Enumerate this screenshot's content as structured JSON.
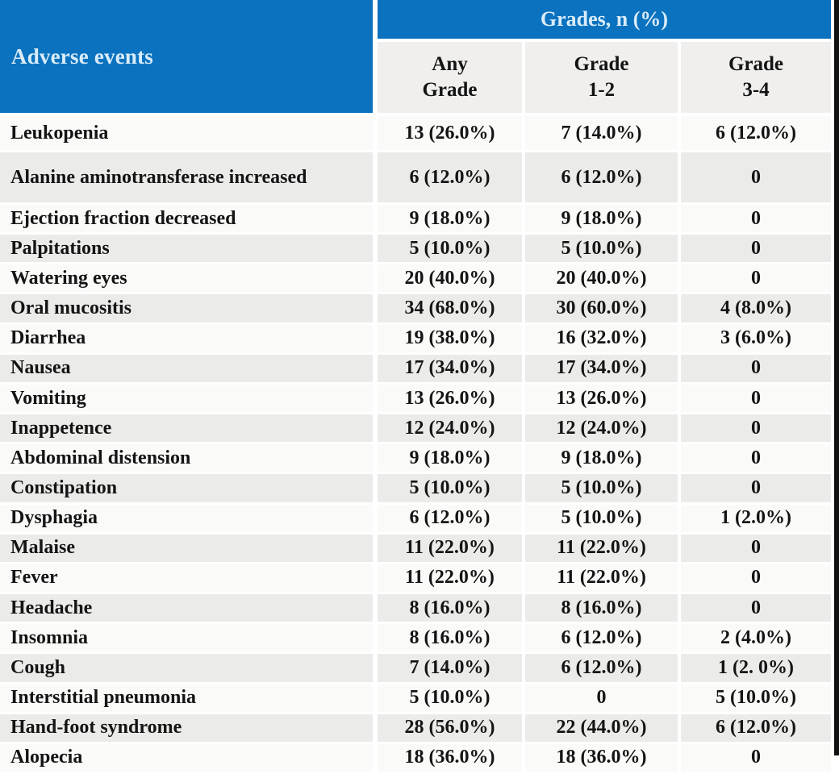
{
  "colors": {
    "header_blue": "#0a72bf",
    "header_text": "#d9ecf9",
    "row_light": "#fafaf8",
    "row_shaded": "#ebebe9",
    "subheader_bg": "#f0efed",
    "body_text": "#141414",
    "edge_black": "#111111"
  },
  "table": {
    "corner_header": "Adverse events",
    "group_header": "Grades, n (%)",
    "columns": [
      {
        "line1": "Any",
        "line2": "Grade"
      },
      {
        "line1": "Grade",
        "line2": "1-2"
      },
      {
        "line1": "Grade",
        "line2": "3-4"
      }
    ],
    "rows": [
      {
        "event": "Leukopenia",
        "values": [
          "13 (26.0%)",
          "7 (14.0%)",
          "6 (12.0%)"
        ]
      },
      {
        "event": "Alanine aminotransferase increased",
        "values": [
          "6 (12.0%)",
          "6 (12.0%)",
          "0"
        ]
      },
      {
        "event": "Ejection fraction decreased",
        "values": [
          "9 (18.0%)",
          "9 (18.0%)",
          "0"
        ]
      },
      {
        "event": "Palpitations",
        "values": [
          "5 (10.0%)",
          "5 (10.0%)",
          "0"
        ]
      },
      {
        "event": "Watering eyes",
        "values": [
          "20 (40.0%)",
          "20 (40.0%)",
          "0"
        ]
      },
      {
        "event": "Oral mucositis",
        "values": [
          "34 (68.0%)",
          "30 (60.0%)",
          "4 (8.0%)"
        ]
      },
      {
        "event": "Diarrhea",
        "values": [
          "19 (38.0%)",
          "16 (32.0%)",
          "3 (6.0%)"
        ]
      },
      {
        "event": "Nausea",
        "values": [
          "17 (34.0%)",
          "17 (34.0%)",
          "0"
        ]
      },
      {
        "event": "Vomiting",
        "values": [
          "13 (26.0%)",
          "13 (26.0%)",
          "0"
        ]
      },
      {
        "event": "Inappetence",
        "values": [
          "12 (24.0%)",
          "12 (24.0%)",
          "0"
        ]
      },
      {
        "event": "Abdominal distension",
        "values": [
          "9 (18.0%)",
          "9 (18.0%)",
          "0"
        ]
      },
      {
        "event": "Constipation",
        "values": [
          "5 (10.0%)",
          "5 (10.0%)",
          "0"
        ]
      },
      {
        "event": "Dysphagia",
        "values": [
          "6 (12.0%)",
          "5 (10.0%)",
          "1 (2.0%)"
        ]
      },
      {
        "event": "Malaise",
        "values": [
          "11 (22.0%)",
          "11 (22.0%)",
          "0"
        ]
      },
      {
        "event": "Fever",
        "values": [
          "11 (22.0%)",
          "11 (22.0%)",
          "0"
        ]
      },
      {
        "event": "Headache",
        "values": [
          "8 (16.0%)",
          "8 (16.0%)",
          "0"
        ]
      },
      {
        "event": "Insomnia",
        "values": [
          "8 (16.0%)",
          "6 (12.0%)",
          "2 (4.0%)"
        ]
      },
      {
        "event": "Cough",
        "values": [
          "7 (14.0%)",
          "6 (12.0%)",
          "1 (2. 0%)"
        ]
      },
      {
        "event": "Interstitial pneumonia",
        "values": [
          "5 (10.0%)",
          "0",
          "5 (10.0%)"
        ]
      },
      {
        "event": "Hand-foot syndrome",
        "values": [
          "28 (56.0%)",
          "22 (44.0%)",
          "6 (12.0%)"
        ]
      },
      {
        "event": "Alopecia",
        "values": [
          "18 (36.0%)",
          "18 (36.0%)",
          "0"
        ]
      }
    ]
  }
}
